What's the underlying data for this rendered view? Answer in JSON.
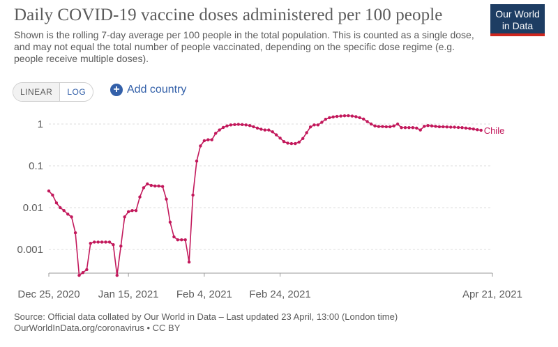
{
  "header": {
    "title": "Daily COVID-19 vaccine doses administered per 100 people",
    "subtitle": "Shown is the rolling 7-day average per 100 people in the total population. This is counted as a single dose, and may not equal the total number of people vaccinated, depending on the specific dose regime (e.g. people receive multiple doses).",
    "logo_line1": "Our World",
    "logo_line2": "in Data"
  },
  "controls": {
    "linear_label": "LINEAR",
    "log_label": "LOG",
    "active_scale": "LOG",
    "add_country_label": "Add country",
    "add_icon": "plus-circle-icon"
  },
  "colors": {
    "series": "#c2185b",
    "accent": "#3360a9",
    "logo_bg": "#1d3d63",
    "logo_bar": "#ce261e"
  },
  "chart_data": {
    "type": "line",
    "title": "Daily COVID-19 vaccine doses administered per 100 people",
    "yscale": "log",
    "ylim": [
      0.0002,
      2
    ],
    "yticks": [
      0.001,
      0.01,
      0.1,
      1
    ],
    "ytick_labels": [
      "0.001",
      "0.01",
      "0.1",
      "1"
    ],
    "xlim": [
      "2020-12-25",
      "2021-04-21"
    ],
    "xticks": [
      "2020-12-25",
      "2021-01-15",
      "2021-02-04",
      "2021-02-24",
      "2021-04-21"
    ],
    "xtick_labels": [
      "Dec 25, 2020",
      "Jan 15, 2021",
      "Feb 4, 2021",
      "Feb 24, 2021",
      "Apr 21, 2021"
    ],
    "grid": true,
    "series": [
      {
        "name": "Chile",
        "points": [
          [
            "2020-12-25",
            0.025
          ],
          [
            "2020-12-26",
            0.02
          ],
          [
            "2020-12-27",
            0.013
          ],
          [
            "2020-12-28",
            0.01
          ],
          [
            "2020-12-29",
            0.0085
          ],
          [
            "2020-12-30",
            0.007
          ],
          [
            "2020-12-31",
            0.006
          ],
          [
            "2021-01-01",
            0.0025
          ],
          [
            "2021-01-02",
            0.00024
          ],
          [
            "2021-01-03",
            0.00028
          ],
          [
            "2021-01-04",
            0.00033
          ],
          [
            "2021-01-05",
            0.0014
          ],
          [
            "2021-01-06",
            0.0015
          ],
          [
            "2021-01-07",
            0.0015
          ],
          [
            "2021-01-08",
            0.0015
          ],
          [
            "2021-01-09",
            0.0015
          ],
          [
            "2021-01-10",
            0.0015
          ],
          [
            "2021-01-11",
            0.0013
          ],
          [
            "2021-01-12",
            0.00024
          ],
          [
            "2021-01-13",
            0.0012
          ],
          [
            "2021-01-14",
            0.006
          ],
          [
            "2021-01-15",
            0.008
          ],
          [
            "2021-01-16",
            0.0085
          ],
          [
            "2021-01-17",
            0.0085
          ],
          [
            "2021-01-18",
            0.018
          ],
          [
            "2021-01-19",
            0.03
          ],
          [
            "2021-01-20",
            0.037
          ],
          [
            "2021-01-21",
            0.034
          ],
          [
            "2021-01-22",
            0.033
          ],
          [
            "2021-01-23",
            0.033
          ],
          [
            "2021-01-24",
            0.032
          ],
          [
            "2021-01-25",
            0.016
          ],
          [
            "2021-01-26",
            0.0045
          ],
          [
            "2021-01-27",
            0.002
          ],
          [
            "2021-01-28",
            0.0017
          ],
          [
            "2021-01-29",
            0.0017
          ],
          [
            "2021-01-30",
            0.0017
          ],
          [
            "2021-01-31",
            0.0005
          ],
          [
            "2021-02-01",
            0.02
          ],
          [
            "2021-02-02",
            0.13
          ],
          [
            "2021-02-03",
            0.3
          ],
          [
            "2021-02-04",
            0.4
          ],
          [
            "2021-02-05",
            0.42
          ],
          [
            "2021-02-06",
            0.42
          ],
          [
            "2021-02-07",
            0.6
          ],
          [
            "2021-02-08",
            0.72
          ],
          [
            "2021-02-09",
            0.83
          ],
          [
            "2021-02-10",
            0.9
          ],
          [
            "2021-02-11",
            0.95
          ],
          [
            "2021-02-12",
            0.97
          ],
          [
            "2021-02-13",
            0.98
          ],
          [
            "2021-02-14",
            0.97
          ],
          [
            "2021-02-15",
            0.95
          ],
          [
            "2021-02-16",
            0.92
          ],
          [
            "2021-02-17",
            0.86
          ],
          [
            "2021-02-18",
            0.8
          ],
          [
            "2021-02-19",
            0.75
          ],
          [
            "2021-02-20",
            0.72
          ],
          [
            "2021-02-21",
            0.72
          ],
          [
            "2021-02-22",
            0.65
          ],
          [
            "2021-02-23",
            0.55
          ],
          [
            "2021-02-24",
            0.46
          ],
          [
            "2021-02-25",
            0.38
          ],
          [
            "2021-02-26",
            0.35
          ],
          [
            "2021-02-27",
            0.34
          ],
          [
            "2021-02-28",
            0.34
          ],
          [
            "2021-03-01",
            0.37
          ],
          [
            "2021-03-02",
            0.45
          ],
          [
            "2021-03-03",
            0.62
          ],
          [
            "2021-03-04",
            0.85
          ],
          [
            "2021-03-05",
            0.95
          ],
          [
            "2021-03-06",
            0.95
          ],
          [
            "2021-03-07",
            1.1
          ],
          [
            "2021-03-08",
            1.3
          ],
          [
            "2021-03-09",
            1.42
          ],
          [
            "2021-03-10",
            1.48
          ],
          [
            "2021-03-11",
            1.52
          ],
          [
            "2021-03-12",
            1.55
          ],
          [
            "2021-03-13",
            1.57
          ],
          [
            "2021-03-14",
            1.58
          ],
          [
            "2021-03-15",
            1.55
          ],
          [
            "2021-03-16",
            1.5
          ],
          [
            "2021-03-17",
            1.42
          ],
          [
            "2021-03-18",
            1.32
          ],
          [
            "2021-03-19",
            1.15
          ],
          [
            "2021-03-20",
            1.0
          ],
          [
            "2021-03-21",
            0.9
          ],
          [
            "2021-03-22",
            0.87
          ],
          [
            "2021-03-23",
            0.87
          ],
          [
            "2021-03-24",
            0.86
          ],
          [
            "2021-03-25",
            0.86
          ],
          [
            "2021-03-26",
            0.9
          ],
          [
            "2021-03-27",
            1.0
          ],
          [
            "2021-03-28",
            0.82
          ],
          [
            "2021-03-29",
            0.82
          ],
          [
            "2021-03-30",
            0.82
          ],
          [
            "2021-03-31",
            0.82
          ],
          [
            "2021-04-01",
            0.8
          ],
          [
            "2021-04-02",
            0.72
          ],
          [
            "2021-04-03",
            0.88
          ],
          [
            "2021-04-04",
            0.92
          ],
          [
            "2021-04-05",
            0.9
          ],
          [
            "2021-04-06",
            0.88
          ],
          [
            "2021-04-07",
            0.86
          ],
          [
            "2021-04-08",
            0.86
          ],
          [
            "2021-04-09",
            0.85
          ],
          [
            "2021-04-10",
            0.84
          ],
          [
            "2021-04-11",
            0.84
          ],
          [
            "2021-04-12",
            0.83
          ],
          [
            "2021-04-13",
            0.82
          ],
          [
            "2021-04-14",
            0.8
          ],
          [
            "2021-04-15",
            0.78
          ],
          [
            "2021-04-16",
            0.76
          ],
          [
            "2021-04-17",
            0.73
          ],
          [
            "2021-04-18",
            0.71
          ]
        ]
      }
    ]
  },
  "footer": {
    "source": "Source: Official data collated by Our World in Data – Last updated 23 April, 13:00 (London time)",
    "link_license": "OurWorldInData.org/coronavirus • CC BY"
  }
}
